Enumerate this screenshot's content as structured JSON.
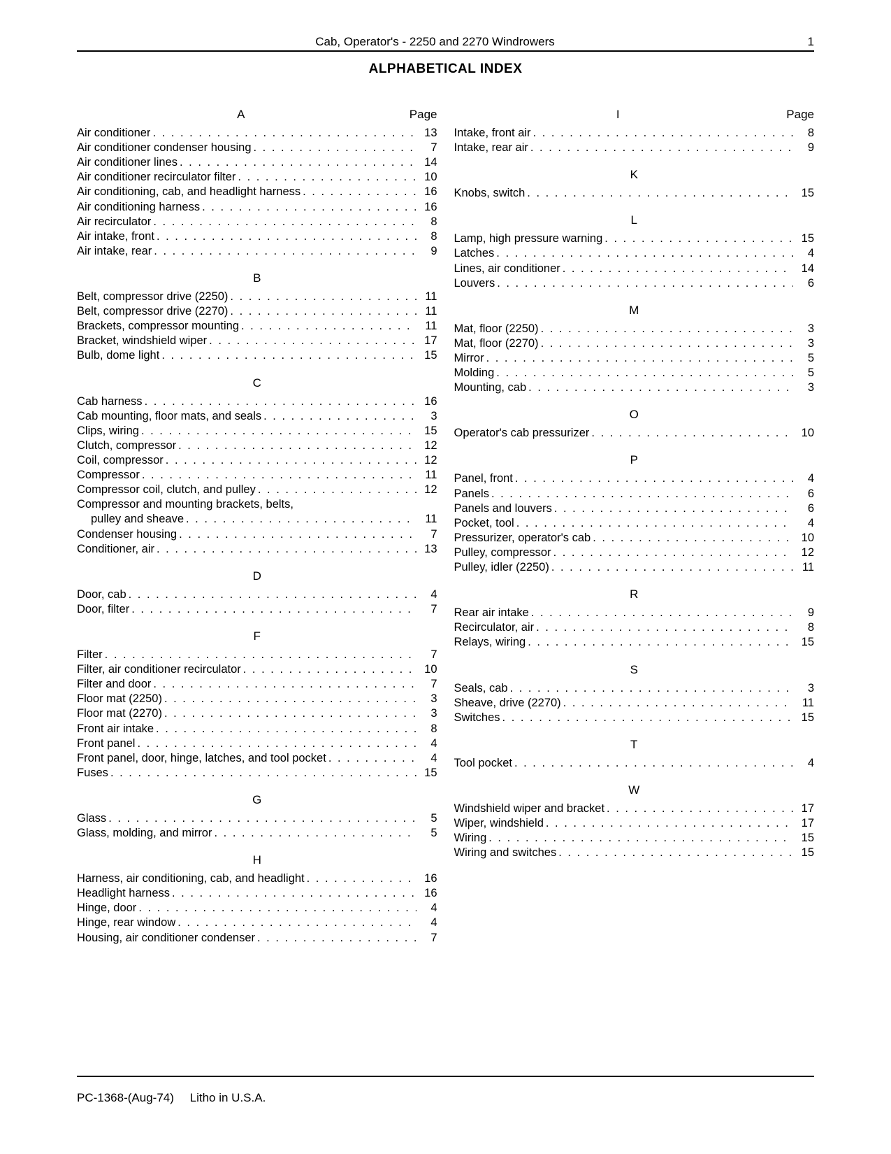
{
  "header": {
    "title": "Cab, Operator's - 2250 and 2270 Windrowers",
    "page_number": "1"
  },
  "main_title": "ALPHABETICAL INDEX",
  "page_label": "Page",
  "footer": {
    "code": "PC-1368-(Aug-74)",
    "litho": "Litho in U.S.A."
  },
  "columns": [
    {
      "sections": [
        {
          "letter": "A",
          "show_page_label": true,
          "entries": [
            {
              "label": "Air conditioner",
              "page": "13"
            },
            {
              "label": "Air conditioner condenser housing",
              "page": "7"
            },
            {
              "label": "Air conditioner lines",
              "page": "14"
            },
            {
              "label": "Air conditioner recirculator filter",
              "page": "10"
            },
            {
              "label": "Air conditioning, cab, and headlight harness",
              "page": "16"
            },
            {
              "label": "Air conditioning harness",
              "page": "16"
            },
            {
              "label": "Air recirculator",
              "page": "8"
            },
            {
              "label": "Air intake, front",
              "page": "8"
            },
            {
              "label": "Air intake, rear",
              "page": "9"
            }
          ]
        },
        {
          "letter": "B",
          "show_page_label": false,
          "entries": [
            {
              "label": "Belt, compressor drive (2250)",
              "page": "11"
            },
            {
              "label": "Belt, compressor drive (2270)",
              "page": "11"
            },
            {
              "label": "Brackets, compressor mounting",
              "page": "11"
            },
            {
              "label": "Bracket, windshield wiper",
              "page": "17"
            },
            {
              "label": "Bulb, dome light",
              "page": "15"
            }
          ]
        },
        {
          "letter": "C",
          "show_page_label": false,
          "entries": [
            {
              "label": "Cab harness",
              "page": "16"
            },
            {
              "label": "Cab mounting, floor mats, and seals",
              "page": "3"
            },
            {
              "label": "Clips, wiring",
              "page": "15"
            },
            {
              "label": "Clutch, compressor",
              "page": "12"
            },
            {
              "label": "Coil, compressor",
              "page": "12"
            },
            {
              "label": "Compressor",
              "page": "11"
            },
            {
              "label": "Compressor coil, clutch, and pulley",
              "page": "12"
            },
            {
              "label": "Compressor and mounting brackets, belts,",
              "page": "",
              "no_dots": true
            },
            {
              "label": "pulley and sheave",
              "page": "11",
              "continuation": true
            },
            {
              "label": "Condenser housing",
              "page": "7"
            },
            {
              "label": "Conditioner, air",
              "page": "13"
            }
          ]
        },
        {
          "letter": "D",
          "show_page_label": false,
          "entries": [
            {
              "label": "Door, cab",
              "page": "4"
            },
            {
              "label": "Door, filter",
              "page": "7"
            }
          ]
        },
        {
          "letter": "F",
          "show_page_label": false,
          "entries": [
            {
              "label": "Filter",
              "page": "7"
            },
            {
              "label": "Filter, air conditioner recirculator",
              "page": "10"
            },
            {
              "label": "Filter and door",
              "page": "7"
            },
            {
              "label": "Floor mat (2250)",
              "page": "3"
            },
            {
              "label": "Floor mat (2270)",
              "page": "3"
            },
            {
              "label": "Front air intake",
              "page": "8"
            },
            {
              "label": "Front panel",
              "page": "4"
            },
            {
              "label": "Front panel, door, hinge, latches, and tool pocket",
              "page": "4"
            },
            {
              "label": "Fuses",
              "page": "15"
            }
          ]
        },
        {
          "letter": "G",
          "show_page_label": false,
          "entries": [
            {
              "label": "Glass",
              "page": "5"
            },
            {
              "label": "Glass, molding, and mirror",
              "page": "5"
            }
          ]
        },
        {
          "letter": "H",
          "show_page_label": false,
          "entries": [
            {
              "label": "Harness, air conditioning, cab, and headlight",
              "page": "16"
            },
            {
              "label": "Headlight harness",
              "page": "16"
            },
            {
              "label": "Hinge, door",
              "page": "4"
            },
            {
              "label": "Hinge, rear window",
              "page": "4"
            },
            {
              "label": "Housing, air conditioner condenser",
              "page": "7"
            }
          ]
        }
      ]
    },
    {
      "sections": [
        {
          "letter": "I",
          "show_page_label": true,
          "entries": [
            {
              "label": "Intake, front air",
              "page": "8"
            },
            {
              "label": "Intake, rear air",
              "page": "9"
            }
          ]
        },
        {
          "letter": "K",
          "show_page_label": false,
          "entries": [
            {
              "label": "Knobs, switch",
              "page": "15"
            }
          ]
        },
        {
          "letter": "L",
          "show_page_label": false,
          "entries": [
            {
              "label": "Lamp, high pressure warning",
              "page": "15"
            },
            {
              "label": "Latches",
              "page": "4"
            },
            {
              "label": "Lines, air conditioner",
              "page": "14"
            },
            {
              "label": "Louvers",
              "page": "6"
            }
          ]
        },
        {
          "letter": "M",
          "show_page_label": false,
          "entries": [
            {
              "label": "Mat, floor (2250)",
              "page": "3"
            },
            {
              "label": "Mat, floor (2270)",
              "page": "3"
            },
            {
              "label": "Mirror",
              "page": "5"
            },
            {
              "label": "Molding",
              "page": "5"
            },
            {
              "label": "Mounting, cab",
              "page": "3"
            }
          ]
        },
        {
          "letter": "O",
          "show_page_label": false,
          "entries": [
            {
              "label": "Operator's cab pressurizer",
              "page": "10"
            }
          ]
        },
        {
          "letter": "P",
          "show_page_label": false,
          "entries": [
            {
              "label": "Panel, front",
              "page": "4"
            },
            {
              "label": "Panels",
              "page": "6"
            },
            {
              "label": "Panels and louvers",
              "page": "6"
            },
            {
              "label": "Pocket, tool",
              "page": "4"
            },
            {
              "label": "Pressurizer, operator's cab",
              "page": "10"
            },
            {
              "label": "Pulley, compressor",
              "page": "12"
            },
            {
              "label": "Pulley, idler (2250)",
              "page": "11"
            }
          ]
        },
        {
          "letter": "R",
          "show_page_label": false,
          "entries": [
            {
              "label": "Rear air intake",
              "page": "9"
            },
            {
              "label": "Recirculator, air",
              "page": "8"
            },
            {
              "label": "Relays, wiring",
              "page": "15"
            }
          ]
        },
        {
          "letter": "S",
          "show_page_label": false,
          "entries": [
            {
              "label": "Seals, cab",
              "page": "3"
            },
            {
              "label": "Sheave, drive (2270)",
              "page": "11"
            },
            {
              "label": "Switches",
              "page": "15"
            }
          ]
        },
        {
          "letter": "T",
          "show_page_label": false,
          "entries": [
            {
              "label": "Tool pocket",
              "page": "4"
            }
          ]
        },
        {
          "letter": "W",
          "show_page_label": false,
          "entries": [
            {
              "label": "Windshield wiper and bracket",
              "page": "17"
            },
            {
              "label": "Wiper, windshield",
              "page": "17"
            },
            {
              "label": "Wiring",
              "page": "15"
            },
            {
              "label": "Wiring and switches",
              "page": "15"
            }
          ]
        }
      ]
    }
  ]
}
